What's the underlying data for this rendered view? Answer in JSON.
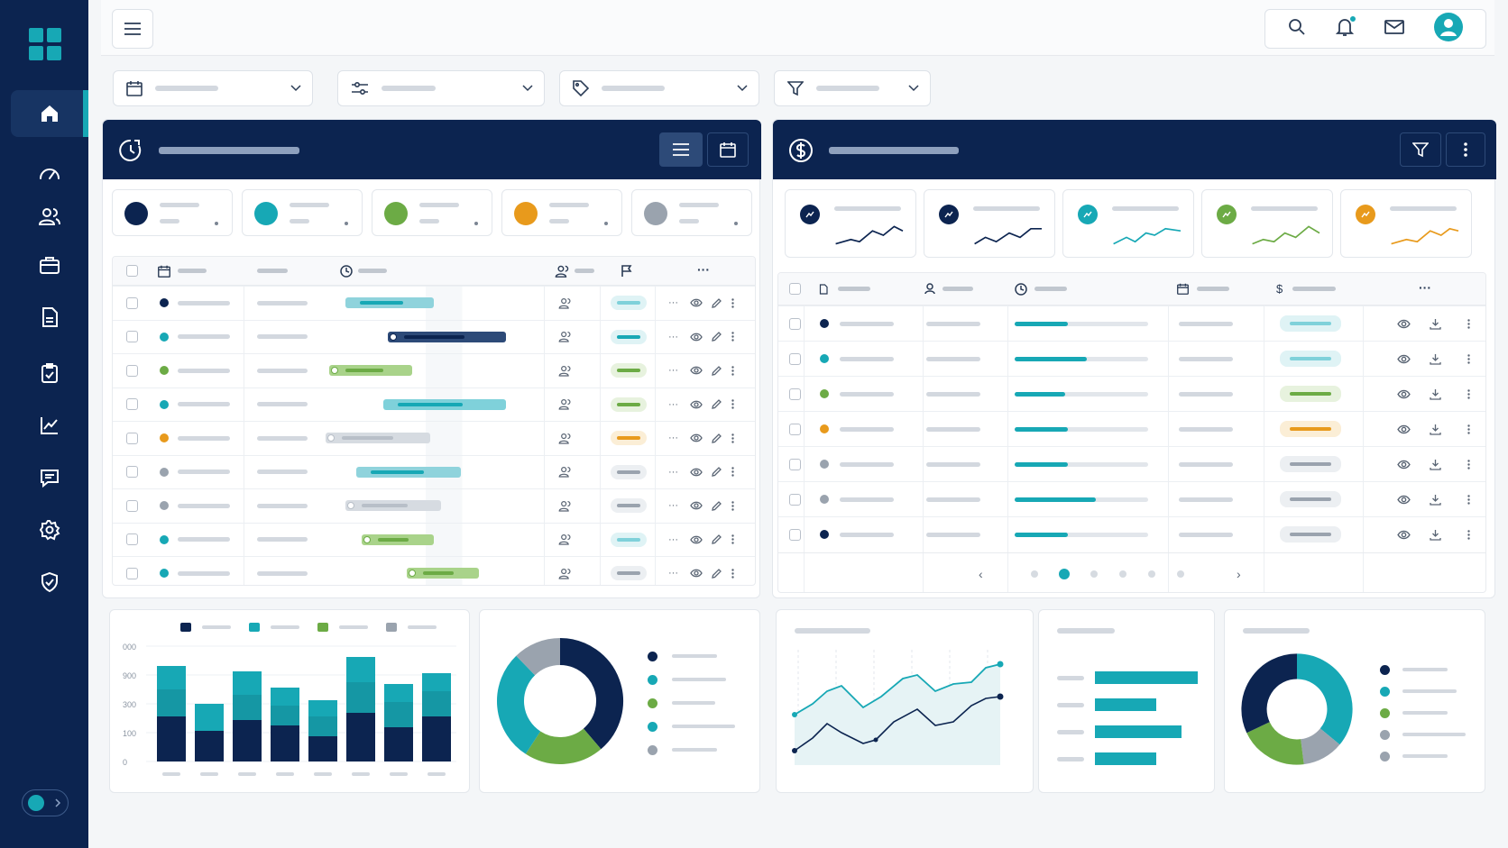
{
  "colors": {
    "navy": "#0c2450",
    "teal": "#17a8b5",
    "green": "#6cab45",
    "orange": "#e89a1c",
    "gray": "#9aa3ae",
    "light_teal": "#7fd1da"
  },
  "icons": {
    "logo": "grid-logo-icon",
    "home": "home-icon",
    "dashboard": "speedometer-icon",
    "users": "users-icon",
    "briefcase": "briefcase-icon",
    "document": "document-icon",
    "clipboard": "clipboard-check-icon",
    "chart": "line-chart-icon",
    "chat": "chat-icon",
    "settings": "gear-icon",
    "security": "shield-check-icon",
    "menu": "hamburger-icon",
    "search": "search-icon",
    "bell": "bell-icon",
    "mail": "mail-icon",
    "avatar": "user-avatar-icon"
  },
  "bar_chart": {
    "tick_labels": [
      "000",
      "900",
      "300",
      "100",
      "0"
    ]
  }
}
